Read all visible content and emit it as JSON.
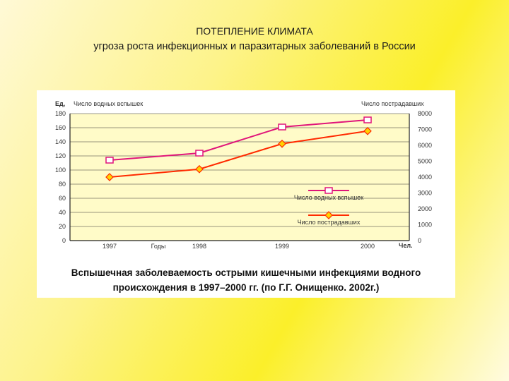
{
  "slide": {
    "title": "ПОТЕПЛЕНИЕ КЛИМАТА",
    "subtitle": "угроза роста инфекционных и паразитарных заболеваний в России"
  },
  "chart_data": {
    "type": "line",
    "x": [
      "1997",
      "1998",
      "1999",
      "2000"
    ],
    "left_axis": {
      "unit_label": "Ед,",
      "title": "Число водных вспышек",
      "ticks": [
        0,
        20,
        40,
        60,
        80,
        100,
        120,
        140,
        160,
        180
      ],
      "ylim": [
        0,
        180
      ]
    },
    "right_axis": {
      "unit_label": "Чел.",
      "title": "Число пострадавших",
      "ticks": [
        0,
        1000,
        2000,
        3000,
        4000,
        5000,
        6000,
        7000,
        8000
      ],
      "ylim": [
        0,
        8000
      ]
    },
    "xlabel": "Годы",
    "series": [
      {
        "name": "Число водных вспышек",
        "axis": "left",
        "values": [
          114,
          124,
          161,
          171
        ],
        "color": "#e0157a",
        "marker": "square"
      },
      {
        "name": "Число пострадавших",
        "axis": "right",
        "values": [
          4000,
          4500,
          6100,
          6900
        ],
        "color": "#ff2a00",
        "marker": "diamond"
      }
    ],
    "legend_placement": "bottom-right",
    "grid": "horizontal",
    "caption_lines": [
      "Вспышечная заболеваемость острыми кишечными инфекциями водного",
      "происхождения в 1997–2000 гг. (по Г.Г. Онищенко. 2002г.)"
    ]
  }
}
